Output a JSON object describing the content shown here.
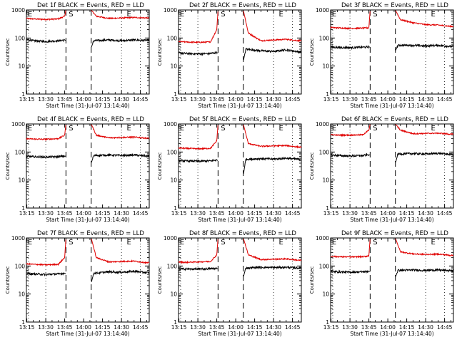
{
  "figure": {
    "start_time_label": "Start Time (31-Jul-07 13:14:40)",
    "ylabel": "Counts/sec"
  },
  "chart_data": [
    {
      "type": "line",
      "title": "Det 1f BLACK = Events, RED = LLD",
      "xlabel": "Start Time (31-Jul-07 13:14:40)",
      "ylabel": "Counts/sec",
      "yscale": "log",
      "ylim": [
        1,
        1000
      ],
      "yticks": [
        "1",
        "10",
        "100",
        "1000"
      ],
      "xticks": [
        "13:15",
        "13:30",
        "13:45",
        "14:00",
        "14:15",
        "14:30",
        "14:45"
      ],
      "markers": [
        "E",
        "S",
        "E"
      ],
      "series": [
        {
          "name": "RED = LLD",
          "color": "#e00000",
          "gap": [
            "13:46",
            "14:06"
          ],
          "values": {
            "13:14": 500,
            "13:20": 480,
            "13:30": 460,
            "13:40": 480,
            "13:45": 600,
            "13:46": 1000,
            "14:06": 1000,
            "14:10": 600,
            "14:20": 500,
            "14:30": 520,
            "14:40": 540,
            "14:50": 520
          }
        },
        {
          "name": "BLACK = Events",
          "color": "#000000",
          "gap": [
            "13:46",
            "14:06"
          ],
          "values": {
            "13:14": 90,
            "13:20": 80,
            "13:30": 75,
            "13:40": 80,
            "13:45": 85,
            "14:06": 45,
            "14:08": 80,
            "14:20": 85,
            "14:30": 80,
            "14:40": 85,
            "14:50": 82
          }
        }
      ]
    },
    {
      "type": "line",
      "title": "Det 2f BLACK = Events, RED = LLD",
      "xlabel": "Start Time (31-Jul-07 13:14:40)",
      "ylabel": "Counts/sec",
      "yscale": "log",
      "ylim": [
        1,
        1000
      ],
      "yticks": [
        "1",
        "10",
        "100",
        "1000"
      ],
      "xticks": [
        "13:15",
        "13:30",
        "13:45",
        "14:00",
        "14:15",
        "14:30",
        "14:45"
      ],
      "markers": [
        "E",
        "S",
        "E"
      ],
      "series": [
        {
          "name": "RED = LLD",
          "color": "#e00000",
          "gap": [
            "13:46",
            "14:06"
          ],
          "values": {
            "13:14": 75,
            "13:20": 72,
            "13:30": 70,
            "13:40": 72,
            "13:45": 200,
            "13:46": 1000,
            "14:06": 1000,
            "14:10": 150,
            "14:20": 80,
            "14:30": 85,
            "14:40": 90,
            "14:50": 80
          }
        },
        {
          "name": "BLACK = Events",
          "color": "#000000",
          "gap": [
            "13:46",
            "14:06"
          ],
          "values": {
            "13:14": 30,
            "13:20": 28,
            "13:30": 27,
            "13:40": 28,
            "13:45": 30,
            "14:06": 15,
            "14:08": 40,
            "14:20": 35,
            "14:30": 33,
            "14:40": 38,
            "14:50": 32
          }
        }
      ]
    },
    {
      "type": "line",
      "title": "Det 3f BLACK = Events, RED = LLD",
      "xlabel": "Start Time (31-Jul-07 13:14:40)",
      "ylabel": "Counts/sec",
      "yscale": "log",
      "ylim": [
        1,
        1000
      ],
      "yticks": [
        "1",
        "10",
        "100",
        "1000"
      ],
      "xticks": [
        "13:15",
        "13:30",
        "13:45",
        "14:00",
        "14:15",
        "14:30",
        "14:45"
      ],
      "markers": [
        "E",
        "S",
        "E"
      ],
      "series": [
        {
          "name": "RED = LLD",
          "color": "#e00000",
          "gap": [
            "13:46",
            "14:06"
          ],
          "values": {
            "13:14": 240,
            "13:20": 230,
            "13:30": 220,
            "13:40": 225,
            "13:45": 230,
            "13:46": 1000,
            "14:06": 1000,
            "14:10": 450,
            "14:20": 350,
            "14:30": 300,
            "14:40": 290,
            "14:50": 260
          }
        },
        {
          "name": "BLACK = Events",
          "color": "#000000",
          "gap": [
            "13:46",
            "14:06"
          ],
          "values": {
            "13:14": 48,
            "13:20": 46,
            "13:30": 45,
            "13:40": 47,
            "13:45": 48,
            "14:06": 35,
            "14:08": 55,
            "14:20": 55,
            "14:30": 52,
            "14:40": 55,
            "14:50": 50
          }
        }
      ]
    },
    {
      "type": "line",
      "title": "Det 4f BLACK = Events, RED = LLD",
      "xlabel": "Start Time (31-Jul-07 13:14:40)",
      "ylabel": "Counts/sec",
      "yscale": "log",
      "ylim": [
        1,
        1000
      ],
      "yticks": [
        "1",
        "10",
        "100",
        "1000"
      ],
      "xticks": [
        "13:15",
        "13:30",
        "13:45",
        "14:00",
        "14:15",
        "14:30",
        "14:45"
      ],
      "markers": [
        "E",
        "S",
        "E"
      ],
      "series": [
        {
          "name": "RED = LLD",
          "color": "#e00000",
          "gap": [
            "13:46",
            "14:06"
          ],
          "values": {
            "13:14": 300,
            "13:20": 290,
            "13:30": 285,
            "13:40": 300,
            "13:45": 400,
            "13:46": 1000,
            "14:06": 1000,
            "14:10": 400,
            "14:20": 320,
            "14:30": 330,
            "14:40": 340,
            "14:50": 310
          }
        },
        {
          "name": "BLACK = Events",
          "color": "#000000",
          "gap": [
            "13:46",
            "14:06"
          ],
          "values": {
            "13:14": 70,
            "13:20": 68,
            "13:30": 66,
            "13:40": 68,
            "13:45": 72,
            "14:06": 40,
            "14:08": 75,
            "14:20": 78,
            "14:30": 75,
            "14:40": 78,
            "14:50": 72
          }
        }
      ]
    },
    {
      "type": "line",
      "title": "Det 5f BLACK = Events, RED = LLD",
      "xlabel": "Start Time (31-Jul-07 13:14:40)",
      "ylabel": "Counts/sec",
      "yscale": "log",
      "ylim": [
        1,
        1000
      ],
      "yticks": [
        "1",
        "10",
        "100",
        "1000"
      ],
      "xticks": [
        "13:15",
        "13:30",
        "13:45",
        "14:00",
        "14:15",
        "14:30",
        "14:45"
      ],
      "markers": [
        "E",
        "S",
        "E"
      ],
      "series": [
        {
          "name": "RED = LLD",
          "color": "#e00000",
          "gap": [
            "13:46",
            "14:06"
          ],
          "values": {
            "13:14": 140,
            "13:20": 135,
            "13:30": 130,
            "13:40": 135,
            "13:45": 250,
            "13:46": 1000,
            "14:06": 1000,
            "14:10": 200,
            "14:20": 160,
            "14:30": 165,
            "14:40": 170,
            "14:50": 150
          }
        },
        {
          "name": "BLACK = Events",
          "color": "#000000",
          "gap": [
            "13:46",
            "14:06"
          ],
          "values": {
            "13:14": 50,
            "13:20": 48,
            "13:30": 47,
            "13:40": 48,
            "13:45": 52,
            "14:06": 15,
            "14:08": 55,
            "14:20": 58,
            "14:30": 56,
            "14:40": 60,
            "14:50": 55
          }
        }
      ]
    },
    {
      "type": "line",
      "title": "Det 6f BLACK = Events, RED = LLD",
      "xlabel": "Start Time (31-Jul-07 13:14:40)",
      "ylabel": "Counts/sec",
      "yscale": "log",
      "ylim": [
        1,
        1000
      ],
      "yticks": [
        "1",
        "10",
        "100",
        "1000"
      ],
      "xticks": [
        "13:15",
        "13:30",
        "13:45",
        "14:00",
        "14:15",
        "14:30",
        "14:45"
      ],
      "markers": [
        "E",
        "S",
        "E"
      ],
      "series": [
        {
          "name": "RED = LLD",
          "color": "#e00000",
          "gap": [
            "13:46",
            "14:06"
          ],
          "values": {
            "13:14": 420,
            "13:20": 400,
            "13:30": 400,
            "13:40": 410,
            "13:45": 600,
            "13:46": 1000,
            "14:06": 1000,
            "14:10": 600,
            "14:20": 450,
            "14:30": 460,
            "14:40": 470,
            "14:50": 430
          }
        },
        {
          "name": "BLACK = Events",
          "color": "#000000",
          "gap": [
            "13:46",
            "14:06"
          ],
          "values": {
            "13:14": 80,
            "13:20": 75,
            "13:30": 72,
            "13:40": 75,
            "13:45": 80,
            "14:06": 40,
            "14:08": 85,
            "14:20": 88,
            "14:30": 85,
            "14:40": 90,
            "14:50": 82
          }
        }
      ]
    },
    {
      "type": "line",
      "title": "Det 7f BLACK = Events, RED = LLD",
      "xlabel": "Start Time (31-Jul-07 13:14:40)",
      "ylabel": "Counts/sec",
      "yscale": "log",
      "ylim": [
        1,
        1000
      ],
      "yticks": [
        "1",
        "10",
        "100",
        "1000"
      ],
      "xticks": [
        "13:15",
        "13:30",
        "13:45",
        "14:00",
        "14:15",
        "14:30",
        "14:45"
      ],
      "markers": [
        "E",
        "S",
        "E"
      ],
      "series": [
        {
          "name": "RED = LLD",
          "color": "#e00000",
          "gap": [
            "13:46",
            "14:06"
          ],
          "values": {
            "13:14": 120,
            "13:20": 115,
            "13:30": 110,
            "13:40": 115,
            "13:45": 200,
            "13:46": 1000,
            "14:06": 1000,
            "14:10": 200,
            "14:20": 140,
            "14:30": 145,
            "14:40": 150,
            "14:50": 130
          }
        },
        {
          "name": "BLACK = Events",
          "color": "#000000",
          "gap": [
            "13:46",
            "14:06"
          ],
          "values": {
            "13:14": 55,
            "13:20": 52,
            "13:30": 50,
            "13:40": 52,
            "13:45": 55,
            "14:06": 25,
            "14:08": 55,
            "14:20": 62,
            "14:30": 60,
            "14:40": 65,
            "14:50": 58
          }
        }
      ]
    },
    {
      "type": "line",
      "title": "Det 8f BLACK = Events, RED = LLD",
      "xlabel": "Start Time (31-Jul-07 13:14:40)",
      "ylabel": "Counts/sec",
      "yscale": "log",
      "ylim": [
        1,
        1000
      ],
      "yticks": [
        "1",
        "10",
        "100",
        "1000"
      ],
      "xticks": [
        "13:15",
        "13:30",
        "13:45",
        "14:00",
        "14:15",
        "14:30",
        "14:45"
      ],
      "markers": [
        "E",
        "S",
        "E"
      ],
      "series": [
        {
          "name": "RED = LLD",
          "color": "#e00000",
          "gap": [
            "13:46",
            "14:06"
          ],
          "values": {
            "13:14": 140,
            "13:20": 135,
            "13:30": 140,
            "13:40": 145,
            "13:45": 250,
            "13:46": 1000,
            "14:06": 1000,
            "14:10": 250,
            "14:20": 170,
            "14:30": 175,
            "14:40": 180,
            "14:50": 160
          }
        },
        {
          "name": "BLACK = Events",
          "color": "#000000",
          "gap": [
            "13:46",
            "14:06"
          ],
          "values": {
            "13:14": 80,
            "13:20": 78,
            "13:30": 78,
            "13:40": 80,
            "13:45": 82,
            "14:06": 40,
            "14:08": 85,
            "14:20": 90,
            "14:30": 88,
            "14:40": 90,
            "14:50": 85
          }
        }
      ]
    },
    {
      "type": "line",
      "title": "Det 9f BLACK = Events, RED = LLD",
      "xlabel": "Start Time (31-Jul-07 13:14:40)",
      "ylabel": "Counts/sec",
      "yscale": "log",
      "ylim": [
        1,
        1000
      ],
      "yticks": [
        "1",
        "10",
        "100",
        "1000"
      ],
      "xticks": [
        "13:15",
        "13:30",
        "13:45",
        "14:00",
        "14:15",
        "14:30",
        "14:45"
      ],
      "markers": [
        "E",
        "S",
        "E"
      ],
      "series": [
        {
          "name": "RED = LLD",
          "color": "#e00000",
          "gap": [
            "13:46",
            "14:06"
          ],
          "values": {
            "13:14": 220,
            "13:20": 215,
            "13:30": 210,
            "13:40": 215,
            "13:45": 230,
            "13:46": 1000,
            "14:06": 1000,
            "14:10": 320,
            "14:20": 270,
            "14:30": 260,
            "14:40": 265,
            "14:50": 240
          }
        },
        {
          "name": "BLACK = Events",
          "color": "#000000",
          "gap": [
            "13:46",
            "14:06"
          ],
          "values": {
            "13:14": 65,
            "13:20": 62,
            "13:30": 60,
            "13:40": 62,
            "13:45": 65,
            "14:06": 40,
            "14:08": 70,
            "14:20": 72,
            "14:30": 70,
            "14:40": 72,
            "14:50": 68
          }
        }
      ]
    }
  ]
}
